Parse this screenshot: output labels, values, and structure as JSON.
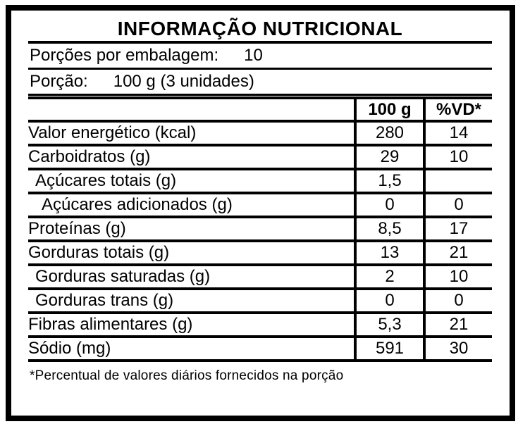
{
  "colors": {
    "text": "#000000",
    "border": "#000000",
    "background": "#ffffff"
  },
  "header": {
    "title": "INFORMAÇÃO NUTRICIONAL",
    "servings_label": "Porções por embalagem:",
    "servings_value": "10",
    "portion_label": "Porção:",
    "portion_value": "100 g (3 unidades)"
  },
  "table": {
    "columns": {
      "label": "",
      "amount": "100 g",
      "vd": "%VD*"
    },
    "rows": [
      {
        "label": "Valor energético (kcal)",
        "amount": "280",
        "vd": "14"
      },
      {
        "label": "Carboidratos (g)",
        "amount": "29",
        "vd": "10"
      },
      {
        "label": "Açúcares totais (g)",
        "amount": "1,5",
        "vd": ""
      },
      {
        "label": "Açúcares adicionados (g)",
        "amount": "0",
        "vd": "0"
      },
      {
        "label": "Proteínas (g)",
        "amount": "8,5",
        "vd": "17"
      },
      {
        "label": "Gorduras totais (g)",
        "amount": "13",
        "vd": "21"
      },
      {
        "label": "Gorduras saturadas (g)",
        "amount": "2",
        "vd": "10"
      },
      {
        "label": "Gorduras trans (g)",
        "amount": "0",
        "vd": "0"
      },
      {
        "label": "Fibras alimentares (g)",
        "amount": "5,3",
        "vd": "21"
      },
      {
        "label": "Sódio (mg)",
        "amount": "591",
        "vd": "30"
      }
    ]
  },
  "footnote": "*Percentual de valores diários fornecidos na porção"
}
